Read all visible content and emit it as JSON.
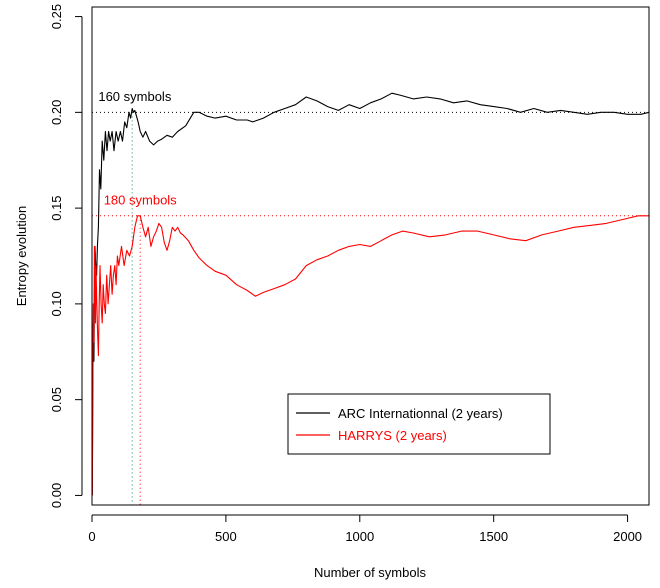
{
  "chart_data": {
    "type": "line",
    "xlabel": "Number of symbols",
    "ylabel": "Entropy evolution",
    "xlim": [
      0,
      2080
    ],
    "ylim": [
      -0.005,
      0.255
    ],
    "xticks": [
      0,
      500,
      1000,
      1500,
      2000
    ],
    "yticks": [
      0.0,
      0.05,
      0.1,
      0.15,
      0.2,
      0.25
    ],
    "ytick_labels": [
      "0.00",
      "0.05",
      "0.10",
      "0.15",
      "0.20",
      "0.25"
    ],
    "grid": false,
    "legend_position": "bottom-right",
    "series": [
      {
        "name": "ARC Internationnal (2 years)",
        "color": "#000000",
        "x": [
          1,
          3,
          5,
          7,
          9,
          11,
          14,
          17,
          20,
          24,
          28,
          33,
          38,
          44,
          50,
          56,
          62,
          68,
          75,
          82,
          90,
          98,
          106,
          114,
          122,
          130,
          138,
          144,
          150,
          155,
          160,
          166,
          172,
          180,
          190,
          200,
          215,
          230,
          245,
          260,
          280,
          300,
          320,
          350,
          380,
          400,
          430,
          460,
          500,
          540,
          580,
          600,
          640,
          680,
          720,
          760,
          800,
          840,
          880,
          920,
          960,
          1000,
          1040,
          1080,
          1120,
          1150,
          1200,
          1250,
          1300,
          1350,
          1400,
          1450,
          1500,
          1550,
          1600,
          1650,
          1700,
          1750,
          1800,
          1850,
          1900,
          1950,
          2000,
          2050,
          2080
        ],
        "y": [
          0.0,
          0.055,
          0.09,
          0.07,
          0.1,
          0.13,
          0.12,
          0.115,
          0.13,
          0.14,
          0.17,
          0.16,
          0.185,
          0.175,
          0.19,
          0.18,
          0.19,
          0.185,
          0.19,
          0.18,
          0.19,
          0.185,
          0.19,
          0.185,
          0.195,
          0.192,
          0.2,
          0.197,
          0.202,
          0.2,
          0.201,
          0.198,
          0.195,
          0.19,
          0.187,
          0.19,
          0.185,
          0.183,
          0.185,
          0.186,
          0.188,
          0.187,
          0.19,
          0.193,
          0.2,
          0.2,
          0.198,
          0.197,
          0.198,
          0.196,
          0.196,
          0.195,
          0.197,
          0.2,
          0.202,
          0.204,
          0.208,
          0.206,
          0.203,
          0.201,
          0.204,
          0.202,
          0.205,
          0.207,
          0.21,
          0.209,
          0.207,
          0.208,
          0.207,
          0.205,
          0.206,
          0.204,
          0.203,
          0.202,
          0.2,
          0.202,
          0.2,
          0.201,
          0.2,
          0.199,
          0.2,
          0.2,
          0.199,
          0.199,
          0.2
        ]
      },
      {
        "name": "HARRYS (2 years)",
        "color": "#ff0000",
        "x": [
          1,
          3,
          5,
          7,
          9,
          11,
          13,
          15,
          18,
          21,
          24,
          27,
          30,
          34,
          38,
          42,
          46,
          50,
          55,
          60,
          65,
          70,
          75,
          80,
          85,
          90,
          95,
          100,
          110,
          120,
          130,
          140,
          150,
          160,
          170,
          180,
          190,
          200,
          210,
          220,
          230,
          240,
          250,
          260,
          270,
          280,
          290,
          300,
          310,
          320,
          330,
          340,
          360,
          380,
          400,
          430,
          460,
          500,
          540,
          580,
          610,
          640,
          680,
          720,
          760,
          800,
          840,
          880,
          920,
          960,
          1000,
          1040,
          1080,
          1120,
          1160,
          1200,
          1260,
          1320,
          1380,
          1440,
          1500,
          1560,
          1620,
          1680,
          1740,
          1800,
          1860,
          1920,
          1980,
          2040,
          2080
        ],
        "y": [
          0.0,
          0.06,
          0.1,
          0.08,
          0.13,
          0.11,
          0.09,
          0.12,
          0.1,
          0.085,
          0.073,
          0.1,
          0.12,
          0.1,
          0.09,
          0.11,
          0.1,
          0.095,
          0.115,
          0.1,
          0.11,
          0.12,
          0.105,
          0.115,
          0.12,
          0.11,
          0.125,
          0.12,
          0.13,
          0.12,
          0.128,
          0.125,
          0.13,
          0.14,
          0.146,
          0.146,
          0.14,
          0.135,
          0.14,
          0.13,
          0.135,
          0.138,
          0.142,
          0.14,
          0.132,
          0.128,
          0.133,
          0.14,
          0.138,
          0.14,
          0.137,
          0.136,
          0.133,
          0.128,
          0.124,
          0.12,
          0.117,
          0.115,
          0.11,
          0.107,
          0.104,
          0.106,
          0.108,
          0.11,
          0.113,
          0.12,
          0.123,
          0.125,
          0.128,
          0.13,
          0.131,
          0.13,
          0.133,
          0.136,
          0.138,
          0.137,
          0.135,
          0.136,
          0.138,
          0.138,
          0.136,
          0.134,
          0.133,
          0.136,
          0.138,
          0.14,
          0.141,
          0.142,
          0.144,
          0.146,
          0.146
        ]
      }
    ],
    "reference_lines": {
      "h1": {
        "y": 0.2,
        "color": "#000000"
      },
      "h2": {
        "y": 0.146,
        "color": "#ff0000"
      },
      "v1": {
        "x": 150,
        "color": "#2e8b57"
      },
      "v2": {
        "x": 180,
        "color": "#ff0000"
      }
    },
    "annotations": [
      {
        "text": "160 symbols",
        "x": 160,
        "y": 0.206,
        "color": "#000000"
      },
      {
        "text": "180 symbols",
        "x": 180,
        "y": 0.152,
        "color": "#ff0000"
      }
    ]
  }
}
